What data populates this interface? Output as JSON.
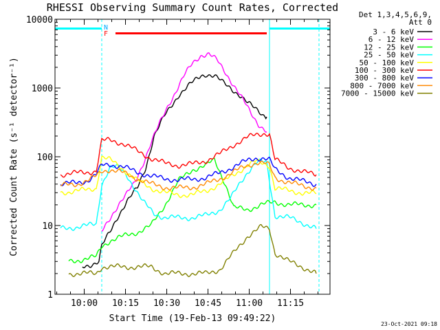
{
  "chart_data": {
    "type": "line",
    "title": "RHESSI Observing Summary Count Rates, Corrected",
    "xlabel": "Start Time (19-Feb-13 09:49:22)",
    "ylabel": "Corrected Count Rate (s⁻¹ detector⁻¹)",
    "yscale": "log",
    "ylim": [
      1,
      10000
    ],
    "xlim_minutes": [
      0,
      100
    ],
    "xtick_labels": [
      "10:00",
      "10:15",
      "10:30",
      "10:45",
      "11:00",
      "11:15"
    ],
    "xtick_minutes": [
      10.63,
      25.63,
      40.63,
      55.63,
      70.63,
      85.63
    ],
    "ytick_labels": [
      "1",
      "10",
      "100",
      "1000",
      "10000"
    ],
    "ytick_values": [
      1,
      10,
      100,
      1000,
      10000
    ],
    "legend_header": [
      "Det 1,3,4,5,6,9,",
      "Att 0"
    ],
    "legend_position": "outside-right",
    "annotations": {
      "flags": [
        "N",
        "F"
      ],
      "night_bars_minutes": [
        [
          0,
          17.0
        ],
        [
          78.0,
          100
        ]
      ],
      "flare_bar_minutes": [
        22.0,
        77.0
      ],
      "eclipse_lines_minutes": [
        17.0,
        78.0,
        96.0
      ]
    },
    "timestamp": "23-Oct-2021 09:18",
    "series": [
      {
        "name": "3 - 6 keV",
        "color": "#000000",
        "x": [
          10,
          14,
          16,
          17,
          20,
          23,
          26,
          30,
          33,
          36,
          40,
          45,
          50,
          53,
          55,
          58,
          61,
          64,
          67,
          70,
          73,
          77
        ],
        "y": [
          2.5,
          2.8,
          3,
          5,
          8,
          14,
          22,
          35,
          70,
          200,
          400,
          800,
          1200,
          1500,
          1600,
          1500,
          1200,
          1000,
          800,
          600,
          500,
          380
        ]
      },
      {
        "name": "6 - 12 keV",
        "color": "#ff00ff",
        "x": [
          17,
          19,
          21,
          23,
          26,
          29,
          32,
          35,
          38,
          41,
          44,
          47,
          50,
          53,
          56,
          59,
          62,
          65,
          68,
          71,
          74,
          77
        ],
        "y": [
          8,
          11,
          15,
          20,
          28,
          42,
          80,
          160,
          300,
          550,
          900,
          1500,
          2300,
          3000,
          3100,
          2500,
          1700,
          1100,
          700,
          450,
          300,
          230
        ]
      },
      {
        "name": "12 - 25 keV",
        "color": "#00ff00",
        "x": [
          5,
          10,
          15,
          17,
          20,
          25,
          30,
          35,
          40,
          45,
          50,
          55,
          58,
          60,
          62,
          65,
          70,
          75,
          80,
          85,
          90,
          95
        ],
        "y": [
          3,
          3.2,
          3.5,
          5,
          6,
          7,
          8,
          10,
          20,
          45,
          65,
          75,
          90,
          60,
          40,
          18,
          17,
          20,
          22,
          20,
          20,
          20
        ]
      },
      {
        "name": "25 - 50 keV",
        "color": "#00ffff",
        "x": [
          2,
          8,
          12,
          15,
          17,
          20,
          23,
          26,
          29,
          32,
          36,
          40,
          45,
          50,
          55,
          60,
          64,
          67,
          70,
          73,
          75,
          77,
          80,
          85,
          90,
          95
        ],
        "y": [
          9,
          9.5,
          10,
          10.5,
          40,
          70,
          70,
          55,
          35,
          22,
          15,
          13,
          13,
          13,
          14,
          17,
          25,
          40,
          60,
          80,
          85,
          80,
          14,
          13,
          11,
          9
        ]
      },
      {
        "name": "50 - 100 keV",
        "color": "#ffff00",
        "x": [
          2,
          8,
          12,
          15,
          17,
          20,
          25,
          30,
          35,
          40,
          45,
          50,
          55,
          60,
          65,
          70,
          73,
          76,
          78,
          80,
          85,
          90,
          95
        ],
        "y": [
          30,
          32,
          33,
          35,
          100,
          90,
          65,
          45,
          35,
          30,
          28,
          28,
          32,
          40,
          55,
          75,
          85,
          80,
          75,
          35,
          32,
          30,
          29
        ]
      },
      {
        "name": "100 - 300 keV",
        "color": "#ff0000",
        "x": [
          2,
          8,
          12,
          15,
          17,
          20,
          25,
          30,
          35,
          40,
          45,
          50,
          55,
          60,
          65,
          70,
          73,
          76,
          78,
          80,
          85,
          90,
          95
        ],
        "y": [
          55,
          58,
          60,
          62,
          170,
          175,
          155,
          120,
          95,
          80,
          75,
          78,
          88,
          110,
          150,
          190,
          210,
          220,
          215,
          90,
          70,
          60,
          55
        ]
      },
      {
        "name": "300 - 800 keV",
        "color": "#0000ff",
        "x": [
          2,
          8,
          12,
          15,
          17,
          20,
          25,
          30,
          35,
          40,
          45,
          50,
          55,
          60,
          65,
          70,
          73,
          76,
          78,
          80,
          85,
          90,
          95
        ],
        "y": [
          40,
          42,
          45,
          55,
          75,
          78,
          70,
          60,
          52,
          48,
          46,
          47,
          50,
          58,
          72,
          88,
          96,
          95,
          90,
          65,
          50,
          44,
          40
        ]
      },
      {
        "name": "800 - 7000 keV",
        "color": "#ff8800",
        "x": [
          2,
          8,
          12,
          15,
          17,
          20,
          25,
          30,
          35,
          40,
          45,
          50,
          55,
          60,
          65,
          70,
          73,
          76,
          78,
          80,
          85,
          90,
          95
        ],
        "y": [
          38,
          40,
          45,
          52,
          62,
          65,
          58,
          48,
          40,
          36,
          35,
          36,
          40,
          48,
          60,
          75,
          82,
          80,
          75,
          50,
          42,
          38,
          35
        ]
      },
      {
        "name": "7000 - 15000 keV",
        "color": "#808000",
        "x": [
          5,
          10,
          15,
          17,
          20,
          25,
          30,
          35,
          40,
          45,
          50,
          55,
          60,
          65,
          70,
          75,
          78,
          80,
          85,
          90,
          95
        ],
        "y": [
          2,
          2,
          2,
          2.5,
          2.5,
          2.5,
          2.5,
          2.5,
          2,
          2,
          2,
          2,
          2.3,
          4,
          7,
          9.5,
          9,
          4,
          3,
          2.5,
          2
        ]
      }
    ]
  }
}
